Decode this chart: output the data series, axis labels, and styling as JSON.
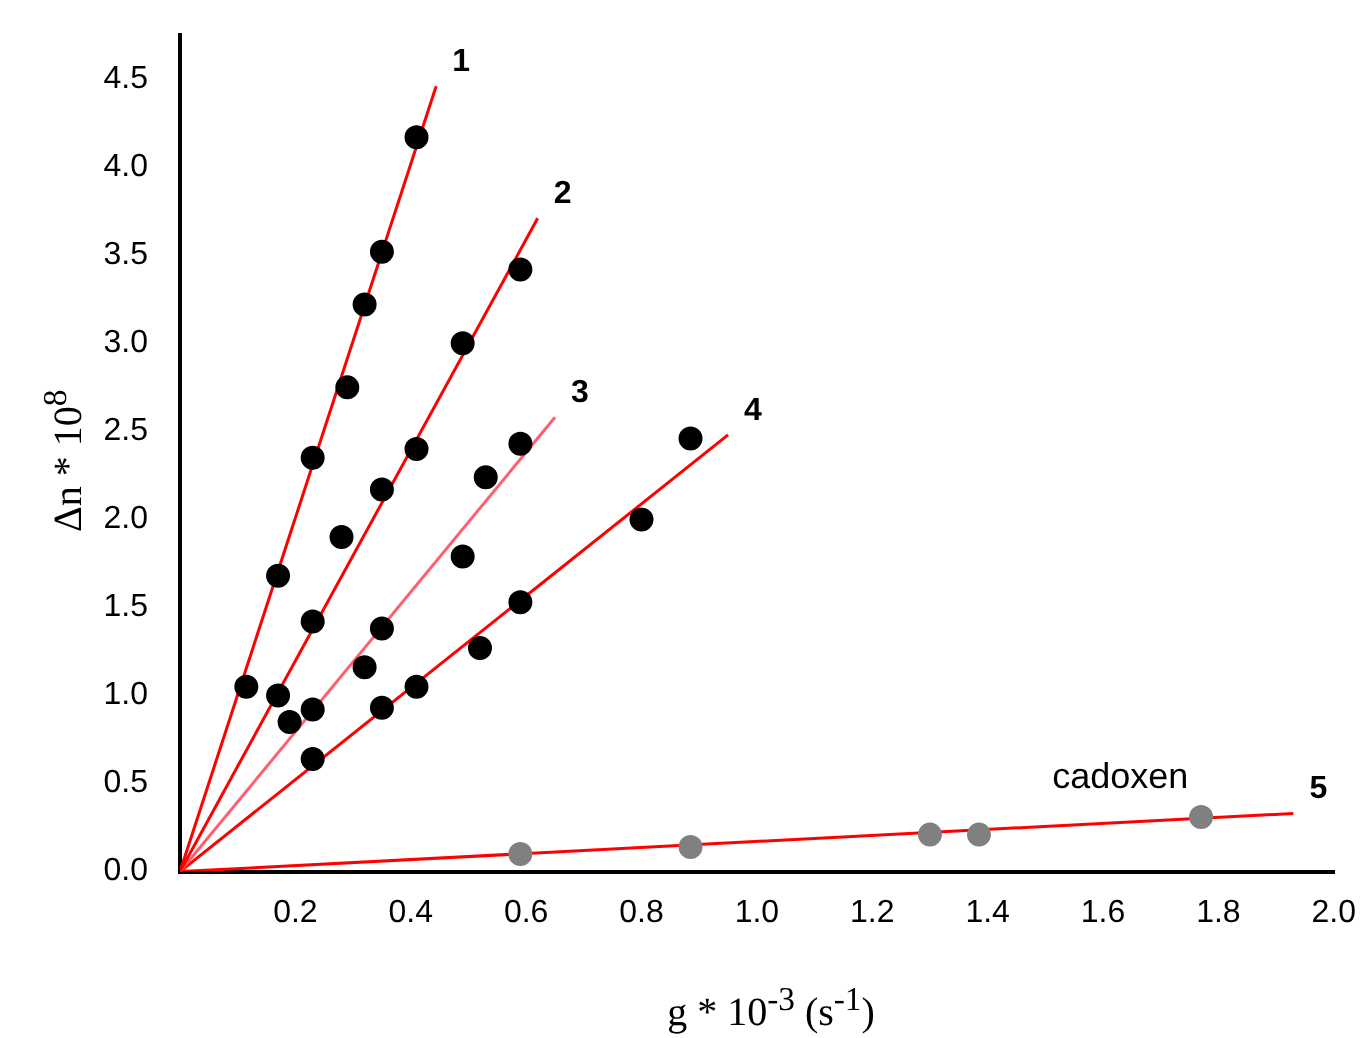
{
  "chart_data": {
    "type": "scatter",
    "xlabel": "g * 10$^{-3}$ (s$^{-1}$)",
    "ylabel": "Δn * 10$^{8}$",
    "xlim": [
      0,
      2.0
    ],
    "ylim": [
      0,
      4.75
    ],
    "xticks": [
      {
        "value": 0.2,
        "label": "0.2"
      },
      {
        "value": 0.4,
        "label": "0.4"
      },
      {
        "value": 0.6,
        "label": "0.6"
      },
      {
        "value": 0.8,
        "label": "0.8"
      },
      {
        "value": 1.0,
        "label": "1.0"
      },
      {
        "value": 1.2,
        "label": "1.2"
      },
      {
        "value": 1.4,
        "label": "1.4"
      },
      {
        "value": 1.6,
        "label": "1.6"
      },
      {
        "value": 1.8,
        "label": "1.8"
      },
      {
        "value": 2.0,
        "label": "2.0"
      }
    ],
    "yticks": [
      {
        "value": 0,
        "label": "0.0"
      },
      {
        "value": 0.5,
        "label": "0.5"
      },
      {
        "value": 1.0,
        "label": "1.0"
      },
      {
        "value": 1.5,
        "label": "1.5"
      },
      {
        "value": 2.0,
        "label": "2.0"
      },
      {
        "value": 2.5,
        "label": "2.5"
      },
      {
        "value": 3.0,
        "label": "3.0"
      },
      {
        "value": 3.5,
        "label": "3.5"
      },
      {
        "value": 4.0,
        "label": "4.0"
      },
      {
        "value": 4.5,
        "label": "4.5"
      }
    ],
    "grid": false,
    "legend": false,
    "marker": "circle",
    "series": [
      {
        "color": "#000000",
        "x": [
          0.115,
          0.17,
          0.23,
          0.29,
          0.32,
          0.35,
          0.41
        ],
        "values": [
          1.05,
          1.68,
          2.35,
          2.75,
          3.22,
          3.52,
          4.17
        ]
      },
      {
        "color": "#000000",
        "x": [
          0.17,
          0.23,
          0.35,
          0.41,
          0.49,
          0.59
        ],
        "values": [
          1.0,
          1.42,
          2.17,
          2.4,
          3.0,
          3.42
        ]
      },
      {
        "color": "#000000",
        "x": [
          0.19,
          0.23,
          0.28,
          0.32,
          0.35,
          0.49,
          0.53,
          0.59
        ],
        "values": [
          0.85,
          0.92,
          1.9,
          1.16,
          1.38,
          1.79,
          2.24,
          2.43
        ]
      },
      {
        "color": "#000000",
        "x": [
          0.23,
          0.35,
          0.41,
          0.52,
          0.59,
          0.8,
          0.885
        ],
        "values": [
          0.64,
          0.93,
          1.05,
          1.27,
          1.53,
          2.0,
          2.46
        ]
      },
      {
        "color": "#808080",
        "x": [
          0.59,
          0.885,
          1.3,
          1.385,
          1.77
        ],
        "values": [
          0.1,
          0.14,
          0.21,
          0.21,
          0.31
        ]
      },
      {
        "type": "line",
        "name": "1",
        "color": "#ff0000",
        "marker": "none",
        "x": [
          0,
          0.444
        ],
        "values": [
          0,
          4.46
        ]
      },
      {
        "type": "line",
        "name": "2",
        "color": "#ff0000",
        "marker": "none",
        "x": [
          0,
          0.62
        ],
        "values": [
          0,
          3.71
        ]
      },
      {
        "type": "line",
        "name": "3",
        "color": "#ff6070",
        "marker": "none",
        "x": [
          0,
          0.65
        ],
        "values": [
          0,
          2.58
        ]
      },
      {
        "type": "line",
        "name": "4",
        "color": "#ff0000",
        "marker": "none",
        "x": [
          0,
          0.95
        ],
        "values": [
          0,
          2.48
        ]
      },
      {
        "type": "line",
        "name": "5",
        "color": "#ff0000",
        "marker": "none",
        "x": [
          0,
          1.93
        ],
        "values": [
          0,
          0.33
        ]
      }
    ],
    "annotations": [
      "cadoxen"
    ]
  }
}
